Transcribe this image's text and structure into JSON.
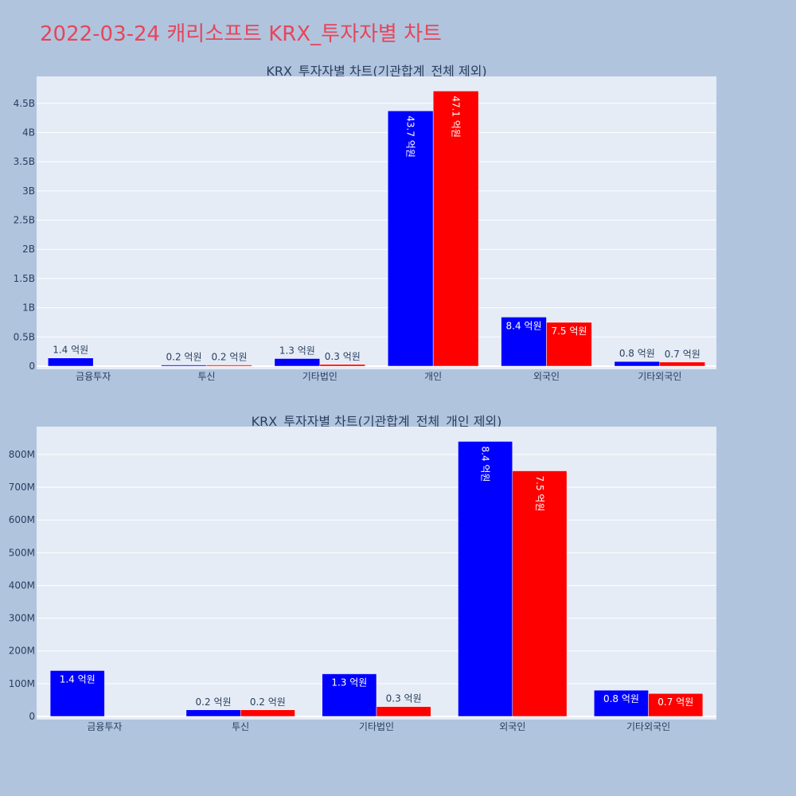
{
  "page_title": "2022-03-24 캐리소프트 KRX_투자자별 차트",
  "colors": {
    "buy": "#0000ff",
    "sell": "#ff0000",
    "plot_bg": "#e5ecf6",
    "page_bg": "#b0c4de",
    "title": "#e8455a",
    "text": "#2a3f5f"
  },
  "chart_data": [
    {
      "type": "bar",
      "title": "KRX_투자자별 차트(기관합계_전체 제외)",
      "categories": [
        "금융투자",
        "투신",
        "기타법인",
        "개인",
        "외국인",
        "기타외국인"
      ],
      "series": [
        {
          "color": "#0000ff",
          "values": [
            140000000,
            20000000,
            130000000,
            4370000000,
            840000000,
            80000000
          ],
          "labels": [
            "1.4 억원",
            "0.2 억원",
            "1.3 억원",
            "43.7 억원",
            "8.4 억원",
            "0.8 억원"
          ]
        },
        {
          "color": "#ff0000",
          "values": [
            0,
            20000000,
            30000000,
            4710000000,
            750000000,
            70000000
          ],
          "labels": [
            "",
            "0.2 억원",
            "0.3 억원",
            "47.1 억원",
            "7.5 억원",
            "0.7 억원"
          ]
        }
      ],
      "y_ticks": [
        0,
        500000000,
        1000000000,
        1500000000,
        2000000000,
        2500000000,
        3000000000,
        3500000000,
        4000000000,
        4500000000
      ],
      "y_tick_labels": [
        "0",
        "0.5B",
        "1B",
        "1.5B",
        "2B",
        "2.5B",
        "3B",
        "3.5B",
        "4B",
        "4.5B"
      ],
      "ylim": [
        0,
        4960000000
      ],
      "grid": true,
      "legend": "none"
    },
    {
      "type": "bar",
      "title": "KRX_투자자별 차트(기관합계_전체_개인 제외)",
      "categories": [
        "금융투자",
        "투신",
        "기타법인",
        "외국인",
        "기타외국인"
      ],
      "series": [
        {
          "color": "#0000ff",
          "values": [
            140000000,
            20000000,
            130000000,
            840000000,
            80000000
          ],
          "labels": [
            "1.4 억원",
            "0.2 억원",
            "1.3 억원",
            "8.4 억원",
            "0.8 억원"
          ]
        },
        {
          "color": "#ff0000",
          "values": [
            0,
            20000000,
            30000000,
            750000000,
            70000000
          ],
          "labels": [
            "",
            "0.2 억원",
            "0.3 억원",
            "7.5 억원",
            "0.7 억원"
          ]
        }
      ],
      "y_ticks": [
        0,
        100000000,
        200000000,
        300000000,
        400000000,
        500000000,
        600000000,
        700000000,
        800000000
      ],
      "y_tick_labels": [
        "0",
        "100M",
        "200M",
        "300M",
        "400M",
        "500M",
        "600M",
        "700M",
        "800M"
      ],
      "ylim": [
        0,
        885000000
      ],
      "grid": true,
      "legend": "none"
    }
  ]
}
